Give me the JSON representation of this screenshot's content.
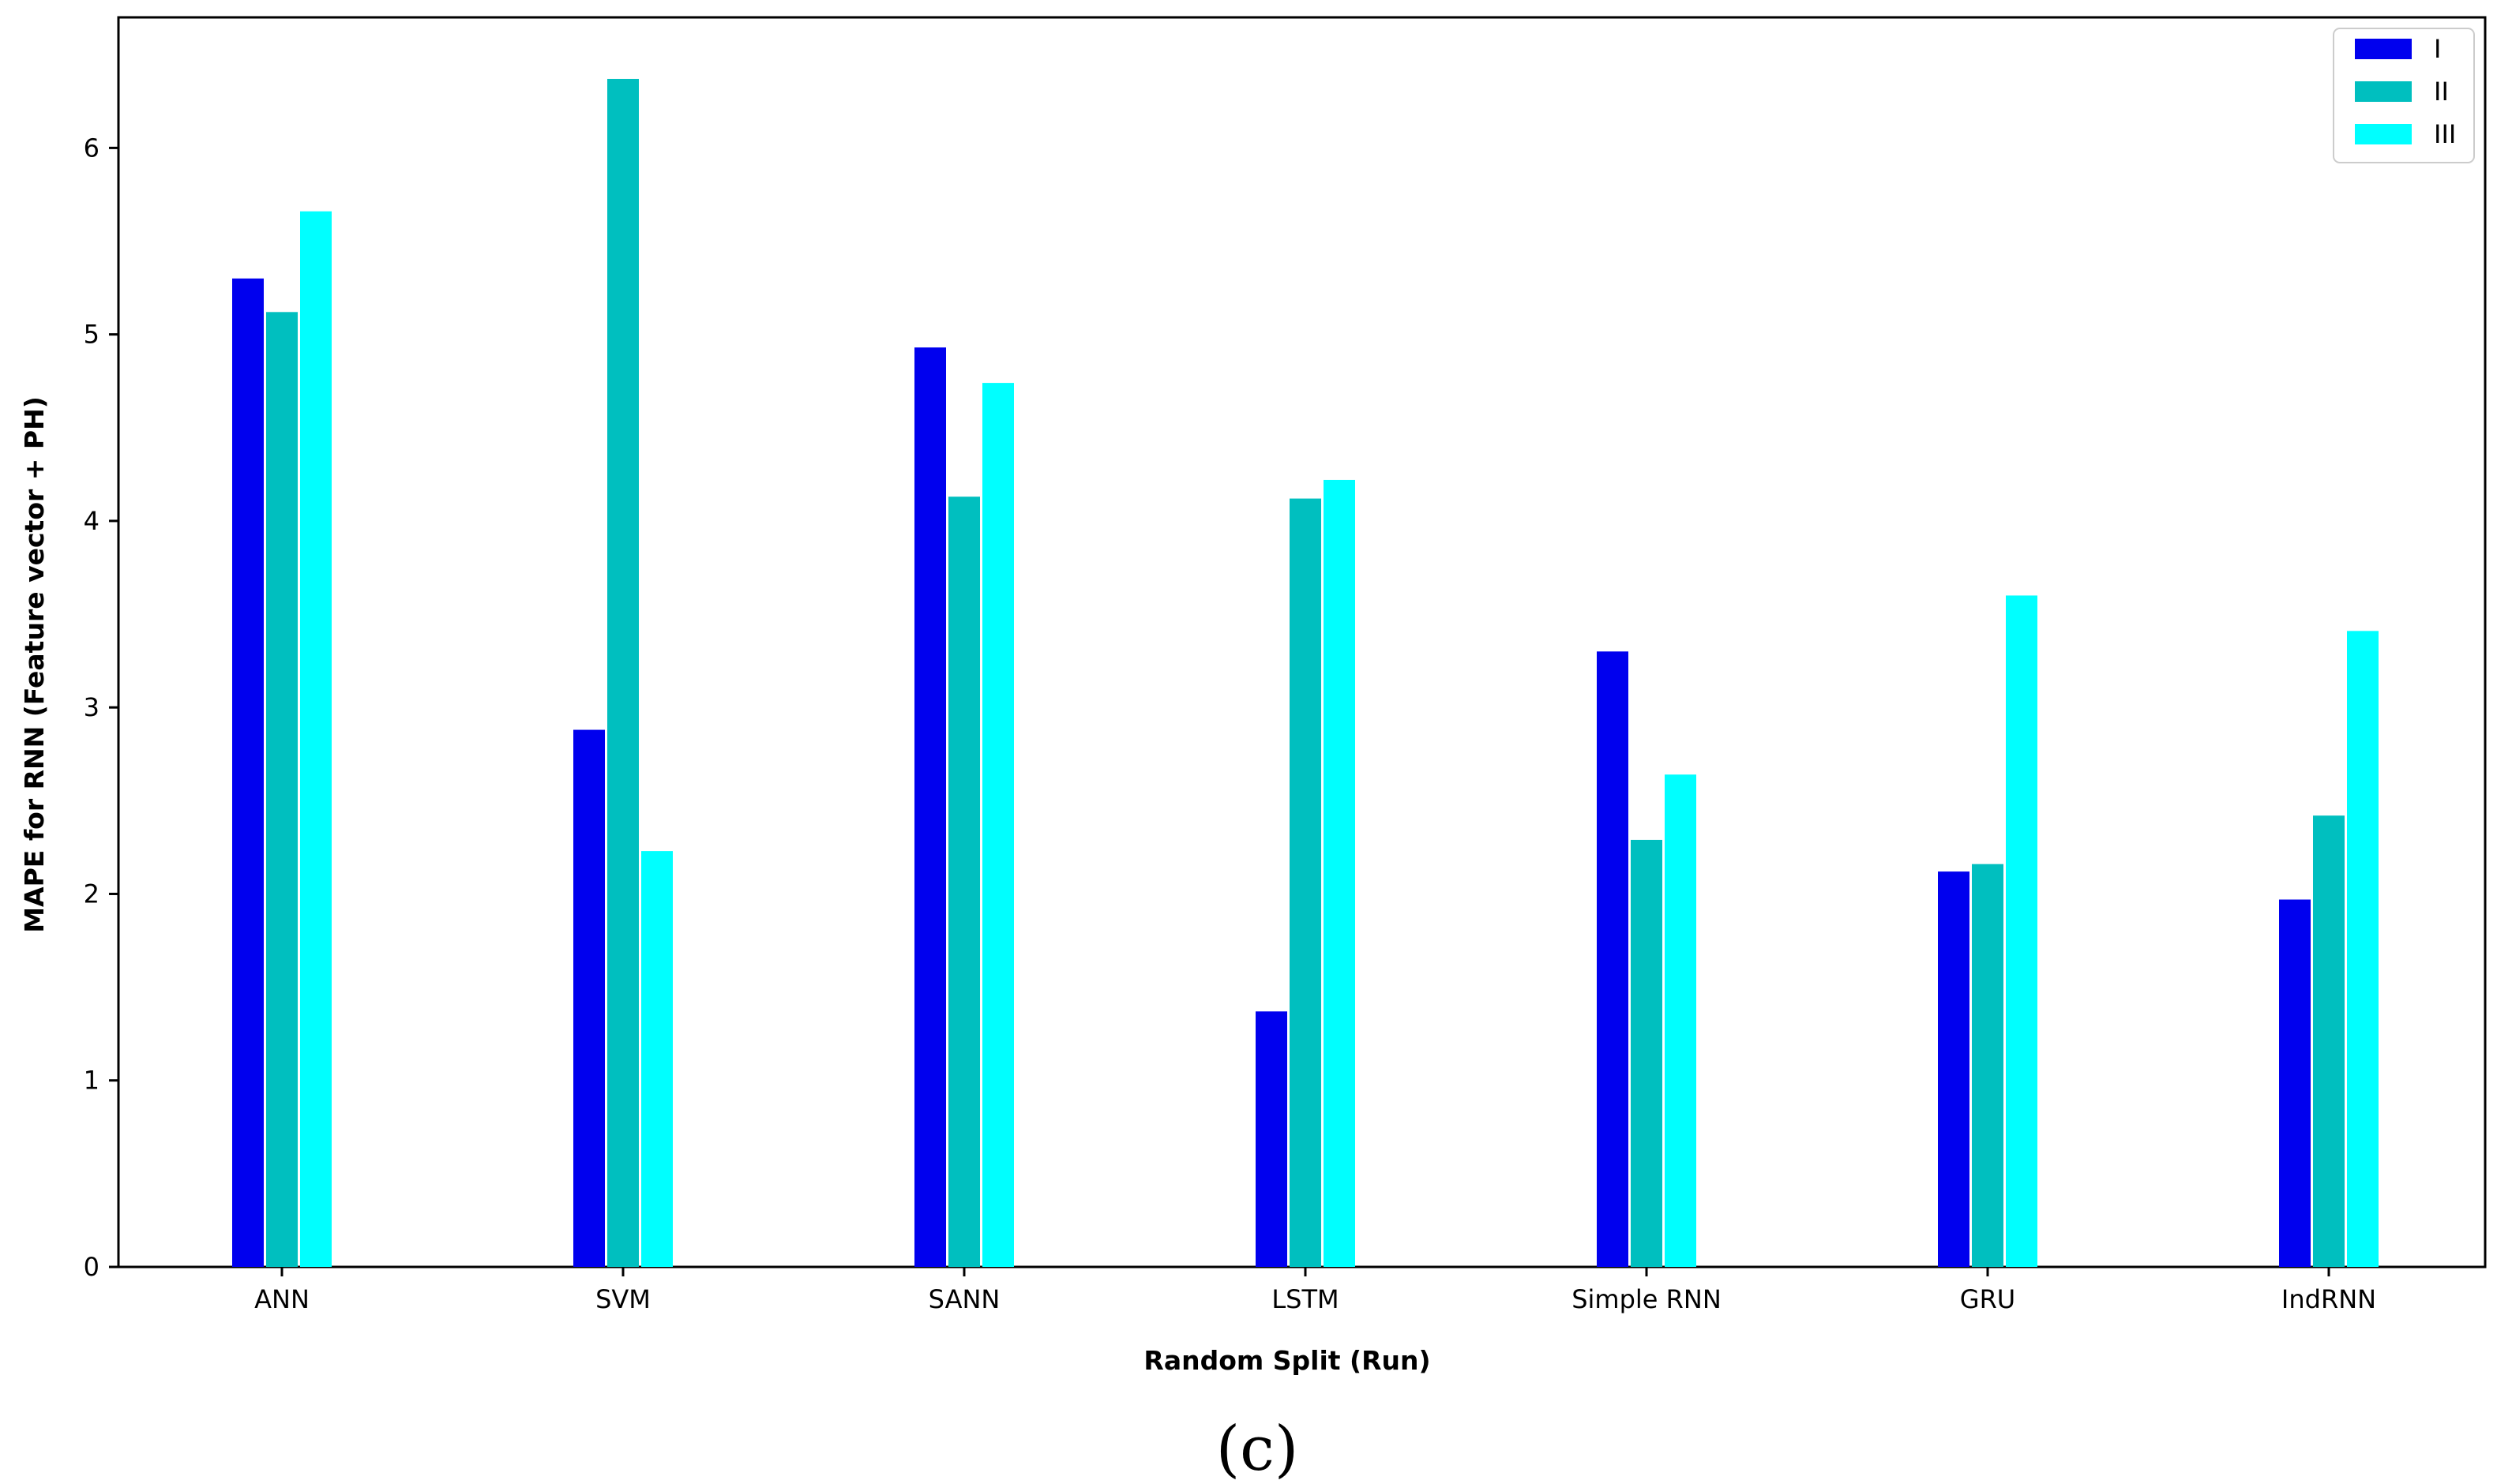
{
  "chart_data": {
    "type": "bar",
    "title": "",
    "xlabel": "Random Split (Run)",
    "ylabel": "MAPE for RNN (Feature vector + PH)",
    "categories": [
      "ANN",
      "SVM",
      "SANN",
      "LSTM",
      "Simple RNN",
      "GRU",
      "IndRNN"
    ],
    "series": [
      {
        "name": "I",
        "color": "#0000ee",
        "values": [
          5.3,
          2.88,
          4.93,
          1.37,
          3.3,
          2.12,
          1.97
        ]
      },
      {
        "name": "II",
        "color": "#00bfbf",
        "values": [
          5.12,
          6.37,
          4.13,
          4.12,
          2.29,
          2.16,
          2.42
        ]
      },
      {
        "name": "III",
        "color": "#00ffff",
        "values": [
          5.66,
          2.23,
          4.74,
          4.22,
          2.64,
          3.6,
          3.41
        ]
      }
    ],
    "ylim": [
      0,
      6.7
    ],
    "yticks": [
      "0",
      "1",
      "2",
      "3",
      "4",
      "5",
      "6"
    ],
    "grid": false,
    "legend_position": "top-right",
    "caption": "(c)"
  }
}
